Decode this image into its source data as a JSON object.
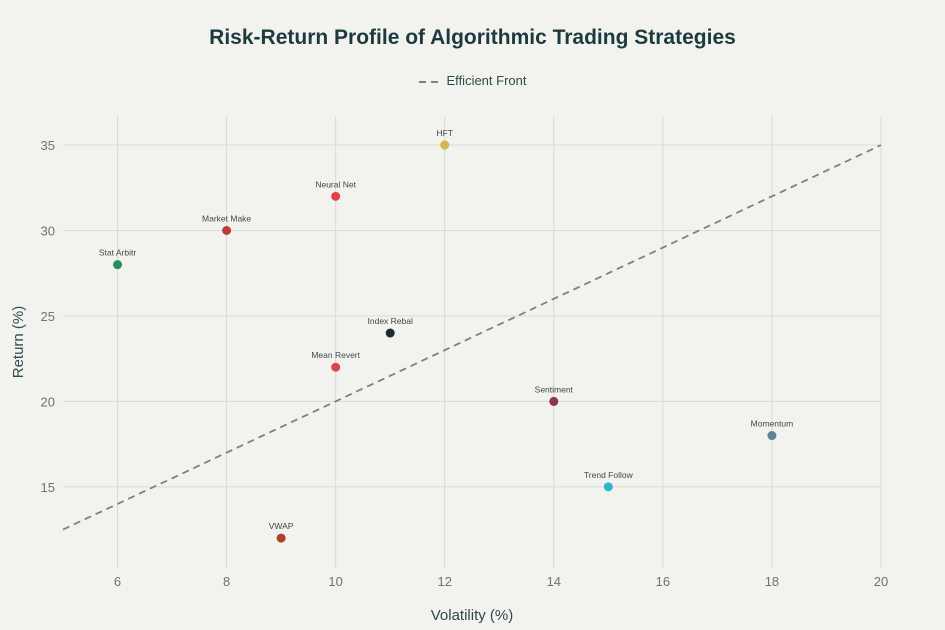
{
  "chart_data": {
    "type": "scatter",
    "title": "Risk-Return Profile of Algorithmic Trading Strategies",
    "xlabel": "Volatility (%)",
    "ylabel": "Return (%)",
    "xlim": [
      5,
      20
    ],
    "ylim": [
      10.25,
      36.7
    ],
    "x_ticks": [
      6,
      8,
      10,
      12,
      14,
      16,
      18,
      20
    ],
    "y_ticks": [
      15,
      20,
      25,
      30,
      35
    ],
    "grid": true,
    "legend": {
      "position": "top-center",
      "entries": [
        "Efficient Front"
      ]
    },
    "points": [
      {
        "label": "Stat Arbitr",
        "x": 6,
        "y": 28,
        "color": "#2E8A5A"
      },
      {
        "label": "Market Make",
        "x": 8,
        "y": 30,
        "color": "#C0393B"
      },
      {
        "label": "Neural Net",
        "x": 10,
        "y": 32,
        "color": "#E0434B"
      },
      {
        "label": "HFT",
        "x": 12,
        "y": 35,
        "color": "#D4B84A"
      },
      {
        "label": "Index Rebal",
        "x": 11,
        "y": 24,
        "color": "#1A2B33"
      },
      {
        "label": "Mean Revert",
        "x": 10,
        "y": 22,
        "color": "#E0434B"
      },
      {
        "label": "Sentiment",
        "x": 14,
        "y": 20,
        "color": "#8E3550"
      },
      {
        "label": "Momentum",
        "x": 18,
        "y": 18,
        "color": "#5E8596"
      },
      {
        "label": "Trend Follow",
        "x": 15,
        "y": 15,
        "color": "#2BB6D3"
      },
      {
        "label": "VWAP",
        "x": 9,
        "y": 12,
        "color": "#A8432A"
      }
    ],
    "series": [
      {
        "name": "Efficient Front",
        "type": "line",
        "style": "dashed",
        "color": "#808080",
        "x": [
          5,
          20
        ],
        "y": [
          12.5,
          35
        ]
      }
    ]
  },
  "title": "Risk-Return Profile of Algorithmic Trading Strategies",
  "legend": {
    "label": "Efficient Front"
  },
  "axes": {
    "xlabel": "Volatility (%)",
    "ylabel": "Return (%)"
  }
}
